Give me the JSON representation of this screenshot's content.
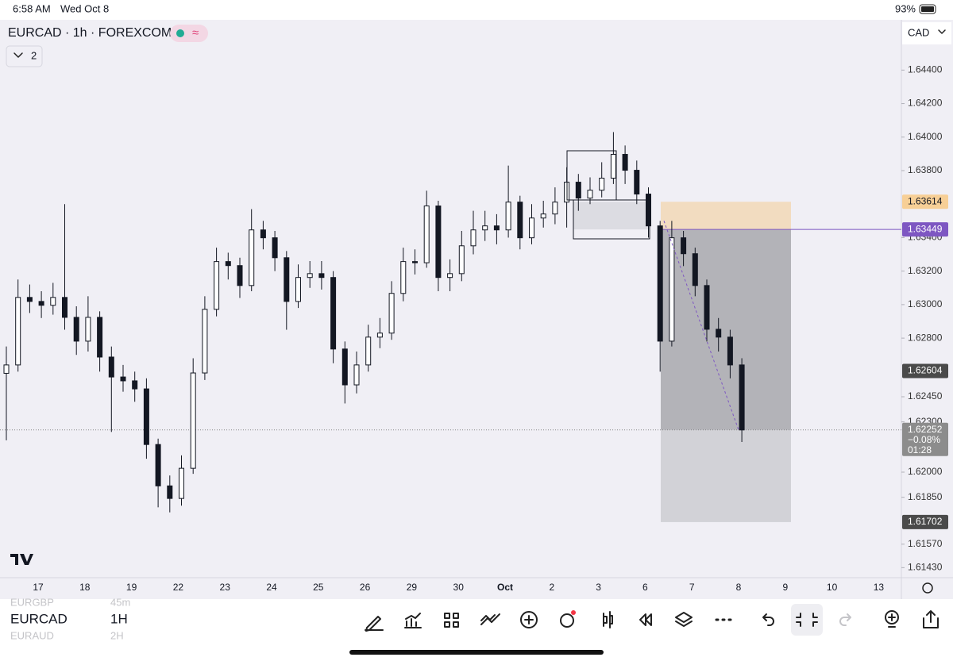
{
  "status_bar": {
    "time": "6:58 AM",
    "date": "Wed Oct 8",
    "battery": "93%"
  },
  "header": {
    "symbol": "EURCAD · 1h · FOREXCOM",
    "indicators": "2",
    "currency": "CAD"
  },
  "chart_data": {
    "type": "candlestick",
    "color": "#131722",
    "open": [
      1.6259,
      1.6264,
      1.63043,
      1.63019,
      1.62996,
      1.63043,
      1.62924,
      1.62782,
      1.62924,
      1.62687,
      1.62568,
      1.62545,
      1.62497,
      1.62165,
      1.61918,
      1.61843,
      1.62023,
      1.62592,
      1.62972,
      1.63257,
      1.63233,
      1.63114,
      1.63446,
      1.63399,
      1.6328,
      1.63019,
      1.63162,
      1.63185,
      1.63162,
      1.62735,
      1.62521,
      1.6264,
      1.62806,
      1.6283,
      1.63067,
      1.63257,
      1.6325,
      1.63589,
      1.63162,
      1.63185,
      1.63351,
      1.63446,
      1.6347,
      1.63446,
      1.63612,
      1.63399,
      1.63517,
      1.63541,
      1.63612,
      1.63731,
      1.63636,
      1.63683,
      1.63755,
      1.63897,
      1.63802,
      1.6366,
      1.6347,
      1.62782,
      1.63399,
      1.63304,
      1.63114,
      1.62853,
      1.62806,
      1.6264
    ],
    "high": [
      1.6275,
      1.6315,
      1.6312,
      1.6308,
      1.6313,
      1.636,
      1.6299,
      1.6305,
      1.6296,
      1.6275,
      1.6264,
      1.626,
      1.6256,
      1.622,
      1.6198,
      1.621,
      1.6268,
      1.6305,
      1.6334,
      1.6331,
      1.6328,
      1.6357,
      1.635,
      1.6344,
      1.6332,
      1.6324,
      1.6326,
      1.6326,
      1.632,
      1.6278,
      1.6272,
      1.6288,
      1.6292,
      1.6314,
      1.6334,
      1.6333,
      1.6368,
      1.6362,
      1.6327,
      1.6344,
      1.6356,
      1.6356,
      1.6354,
      1.6383,
      1.6365,
      1.636,
      1.6362,
      1.637,
      1.6382,
      1.6378,
      1.6376,
      1.6385,
      1.6403,
      1.6395,
      1.6386,
      1.637,
      1.635,
      1.635,
      1.6344,
      1.6334,
      1.6315,
      1.6292,
      1.6285,
      1.6268
    ],
    "low": [
      1.6219,
      1.626,
      1.6295,
      1.6292,
      1.6294,
      1.6285,
      1.627,
      1.6272,
      1.626,
      1.6224,
      1.6248,
      1.6242,
      1.6208,
      1.6179,
      1.6176,
      1.618,
      1.6199,
      1.6255,
      1.6293,
      1.6315,
      1.6304,
      1.6308,
      1.6333,
      1.632,
      1.6285,
      1.6298,
      1.631,
      1.6309,
      1.6265,
      1.6241,
      1.6247,
      1.626,
      1.6274,
      1.6279,
      1.6302,
      1.6318,
      1.6322,
      1.6308,
      1.6308,
      1.6314,
      1.633,
      1.6338,
      1.6336,
      1.634,
      1.6333,
      1.6336,
      1.6346,
      1.6348,
      1.6346,
      1.6356,
      1.636,
      1.6364,
      1.6372,
      1.6372,
      1.636,
      1.634,
      1.626,
      1.6275,
      1.6323,
      1.6305,
      1.6278,
      1.6272,
      1.6256,
      1.6218
    ],
    "close": [
      1.6264,
      1.63043,
      1.63019,
      1.62996,
      1.63043,
      1.62924,
      1.62782,
      1.62924,
      1.62687,
      1.62568,
      1.62545,
      1.62497,
      1.62165,
      1.61918,
      1.61843,
      1.62023,
      1.62592,
      1.62972,
      1.63257,
      1.63233,
      1.63114,
      1.63446,
      1.63399,
      1.6328,
      1.63019,
      1.63162,
      1.63185,
      1.63162,
      1.62735,
      1.62521,
      1.6264,
      1.62806,
      1.6283,
      1.63067,
      1.63257,
      1.6325,
      1.63589,
      1.63162,
      1.63185,
      1.63351,
      1.63446,
      1.6347,
      1.63446,
      1.63612,
      1.63399,
      1.63517,
      1.63541,
      1.63612,
      1.63731,
      1.63636,
      1.63683,
      1.63755,
      1.63897,
      1.63802,
      1.6366,
      1.6347,
      1.62782,
      1.63399,
      1.63304,
      1.63114,
      1.62853,
      1.62806,
      1.6264,
      1.62252
    ],
    "ylim": [
      1.6137,
      1.647
    ],
    "yticks": [
      {
        "value": 1.644,
        "label": "1.64400"
      },
      {
        "value": 1.642,
        "label": "1.64200"
      },
      {
        "value": 1.64,
        "label": "1.64000"
      },
      {
        "value": 1.638,
        "label": "1.63800"
      },
      {
        "value": 1.634,
        "label": "1.63400"
      },
      {
        "value": 1.632,
        "label": "1.63200"
      },
      {
        "value": 1.63,
        "label": "1.63000"
      },
      {
        "value": 1.628,
        "label": "1.62800"
      },
      {
        "value": 1.6245,
        "label": "1.62450"
      },
      {
        "value": 1.623,
        "label": "1.62300"
      },
      {
        "value": 1.62,
        "label": "1.62000"
      },
      {
        "value": 1.6185,
        "label": "1.61850"
      },
      {
        "value": 1.6157,
        "label": "1.61570"
      },
      {
        "value": 1.6143,
        "label": "1.61430"
      }
    ],
    "day_labels": [
      "17",
      "18",
      "19",
      "22",
      "23",
      "24",
      "25",
      "26",
      "29",
      "30",
      "Oct",
      "2",
      "3",
      "6",
      "7",
      "8",
      "9",
      "10",
      "13"
    ],
    "price_labels": [
      {
        "value": 1.63614,
        "color": "#f7cf96"
      },
      {
        "value": 1.63449,
        "color": "#7e57c2"
      },
      {
        "value": 1.62604,
        "color": "#4a4a4a"
      },
      {
        "value": 1.61702,
        "color": "#4a4a4a"
      }
    ],
    "last_price": {
      "value": 1.62252,
      "change": "−0.08%",
      "countdown": "01:28",
      "color": "#8c8c8c"
    }
  },
  "toolbar": {
    "symbol": "EURCAD",
    "interval": "1H",
    "prev_symbol": "EURGBP",
    "prev_interval": "45m",
    "next_symbol": "EURAUD",
    "next_interval": "2H"
  }
}
